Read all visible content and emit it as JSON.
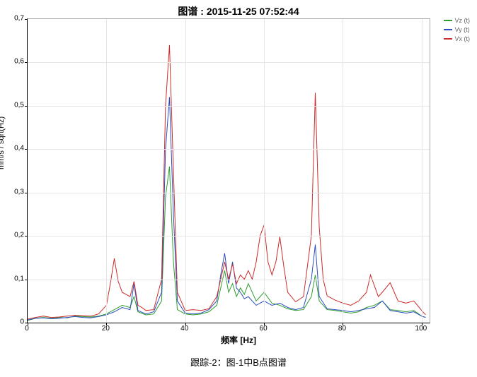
{
  "title": "图谱 : 2015-11-25 07:52:44",
  "xlabel": "频率 [Hz]",
  "ylabel": "mm/s / sqrt(Hz)",
  "caption": "跟踪-2：图-1中B点图谱",
  "xlim": [
    0,
    102
  ],
  "ylim": [
    0,
    0.7
  ],
  "xticks": [
    0,
    20,
    40,
    60,
    80,
    100
  ],
  "yticks": [
    0,
    0.1,
    0.2,
    0.3,
    0.4,
    0.5,
    0.6,
    0.7
  ],
  "ytick_labels": [
    "0",
    "0,1",
    "0,2",
    "0,3",
    "0,4",
    "0,5",
    "0,6",
    "0,7"
  ],
  "background_color": "#ffffff",
  "grid_color": "#e6e6e6",
  "axis_color": "#000000",
  "title_fontsize": 14,
  "label_fontsize": 12,
  "tick_fontsize": 10,
  "line_width": 1,
  "legend_position": "top-right",
  "legend_fontsize": 9,
  "series": [
    {
      "name": "Vz (t)",
      "color": "#2e9e2e",
      "x": [
        0,
        2,
        4,
        6,
        8,
        10,
        12,
        14,
        16,
        18,
        20,
        22,
        24,
        26,
        27,
        28,
        30,
        32,
        34,
        35,
        36,
        37,
        38,
        40,
        42,
        44,
        46,
        48,
        49,
        50,
        51,
        52,
        53,
        54,
        55,
        56,
        58,
        60,
        62,
        64,
        66,
        68,
        70,
        72,
        73,
        74,
        76,
        78,
        80,
        82,
        84,
        86,
        88,
        90,
        92,
        94,
        96,
        98,
        100,
        101
      ],
      "y": [
        0.005,
        0.01,
        0.012,
        0.01,
        0.012,
        0.011,
        0.015,
        0.014,
        0.013,
        0.015,
        0.02,
        0.03,
        0.04,
        0.035,
        0.06,
        0.025,
        0.018,
        0.02,
        0.05,
        0.29,
        0.36,
        0.14,
        0.03,
        0.02,
        0.018,
        0.02,
        0.025,
        0.04,
        0.08,
        0.12,
        0.07,
        0.09,
        0.06,
        0.08,
        0.065,
        0.09,
        0.05,
        0.07,
        0.045,
        0.04,
        0.032,
        0.028,
        0.03,
        0.06,
        0.11,
        0.05,
        0.03,
        0.028,
        0.025,
        0.022,
        0.025,
        0.035,
        0.04,
        0.05,
        0.03,
        0.028,
        0.025,
        0.028,
        0.015,
        0.012
      ]
    },
    {
      "name": "Vy (t)",
      "color": "#2a4dc0",
      "x": [
        0,
        2,
        4,
        6,
        8,
        10,
        12,
        14,
        16,
        18,
        20,
        22,
        24,
        26,
        27,
        28,
        30,
        32,
        34,
        35,
        36,
        37,
        38,
        40,
        42,
        44,
        46,
        48,
        49,
        50,
        51,
        52,
        53,
        54,
        55,
        56,
        58,
        60,
        62,
        64,
        66,
        68,
        70,
        72,
        73,
        74,
        76,
        78,
        80,
        82,
        84,
        86,
        88,
        90,
        92,
        94,
        96,
        98,
        100,
        101
      ],
      "y": [
        0.006,
        0.01,
        0.011,
        0.009,
        0.01,
        0.012,
        0.014,
        0.012,
        0.011,
        0.014,
        0.018,
        0.025,
        0.035,
        0.03,
        0.09,
        0.028,
        0.02,
        0.025,
        0.07,
        0.4,
        0.52,
        0.25,
        0.05,
        0.022,
        0.02,
        0.022,
        0.03,
        0.05,
        0.11,
        0.16,
        0.09,
        0.14,
        0.08,
        0.07,
        0.055,
        0.06,
        0.04,
        0.05,
        0.04,
        0.045,
        0.035,
        0.03,
        0.035,
        0.1,
        0.18,
        0.06,
        0.032,
        0.03,
        0.028,
        0.025,
        0.028,
        0.032,
        0.035,
        0.05,
        0.028,
        0.025,
        0.022,
        0.025,
        0.015,
        0.012
      ]
    },
    {
      "name": "Vx (t)",
      "color": "#cc2b2b",
      "x": [
        0,
        2,
        4,
        6,
        8,
        10,
        12,
        14,
        16,
        18,
        20,
        21,
        22,
        23,
        24,
        25,
        26,
        27,
        28,
        29,
        30,
        32,
        34,
        35,
        36,
        37,
        38,
        40,
        42,
        44,
        46,
        48,
        49,
        50,
        51,
        52,
        53,
        54,
        55,
        56,
        57,
        58,
        59,
        60,
        61,
        62,
        63,
        64,
        65,
        66,
        68,
        70,
        72,
        73,
        74,
        75,
        76,
        78,
        80,
        82,
        84,
        86,
        87,
        88,
        89,
        90,
        92,
        94,
        96,
        98,
        100,
        101
      ],
      "y": [
        0.008,
        0.012,
        0.015,
        0.012,
        0.013,
        0.015,
        0.017,
        0.016,
        0.015,
        0.02,
        0.04,
        0.09,
        0.148,
        0.095,
        0.07,
        0.065,
        0.06,
        0.095,
        0.04,
        0.035,
        0.028,
        0.03,
        0.1,
        0.5,
        0.64,
        0.35,
        0.07,
        0.028,
        0.03,
        0.028,
        0.032,
        0.06,
        0.1,
        0.14,
        0.1,
        0.135,
        0.09,
        0.11,
        0.1,
        0.12,
        0.1,
        0.14,
        0.2,
        0.225,
        0.14,
        0.11,
        0.14,
        0.198,
        0.13,
        0.07,
        0.048,
        0.06,
        0.2,
        0.53,
        0.22,
        0.1,
        0.062,
        0.052,
        0.045,
        0.04,
        0.05,
        0.07,
        0.11,
        0.085,
        0.06,
        0.07,
        0.092,
        0.05,
        0.045,
        0.05,
        0.028,
        0.018
      ]
    }
  ]
}
